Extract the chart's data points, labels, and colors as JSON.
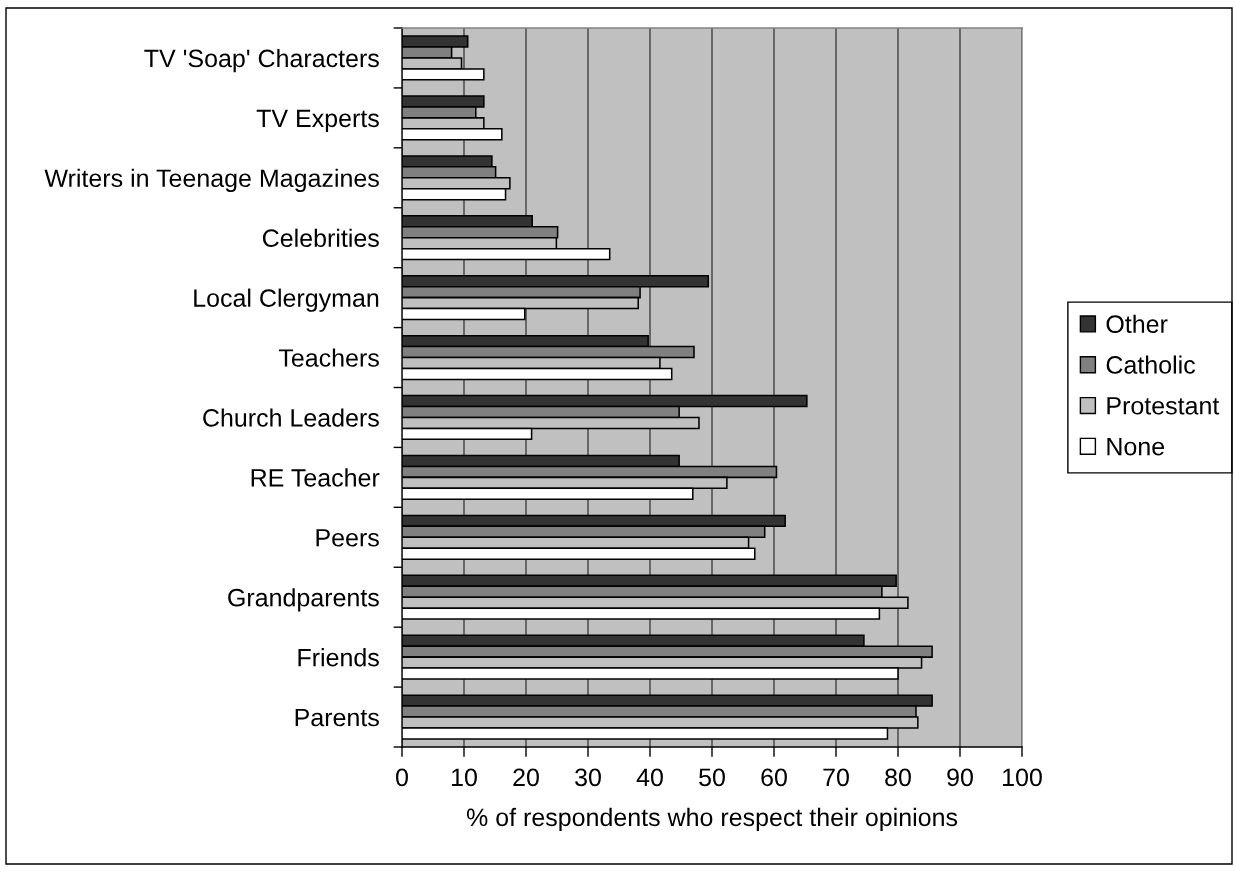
{
  "chart_data": {
    "type": "bar",
    "orientation": "horizontal",
    "categories": [
      "TV 'Soap' Characters",
      "TV Experts",
      "Writers in Teenage Magazines",
      "Celebrities",
      "Local Clergyman",
      "Teachers",
      "Church Leaders",
      "RE Teacher",
      "Peers",
      "Grandparents",
      "Friends",
      "Parents"
    ],
    "series": [
      {
        "name": "Other",
        "color": "#333333",
        "values": [
          10.6,
          13.2,
          14.5,
          21.0,
          49.4,
          39.7,
          65.3,
          44.7,
          61.8,
          79.7,
          74.5,
          85.5
        ]
      },
      {
        "name": "Catholic",
        "color": "#808080",
        "values": [
          8.0,
          11.9,
          15.1,
          25.1,
          38.4,
          47.1,
          44.7,
          60.4,
          58.5,
          77.4,
          85.5,
          82.9
        ]
      },
      {
        "name": "Protestant",
        "color": "#c0c0c0",
        "values": [
          9.6,
          13.2,
          17.4,
          24.9,
          38.1,
          41.6,
          47.9,
          52.4,
          55.9,
          81.6,
          83.8,
          83.2
        ]
      },
      {
        "name": "None",
        "color": "#ffffff",
        "values": [
          13.2,
          16.1,
          16.7,
          33.5,
          19.8,
          43.5,
          20.9,
          46.9,
          56.9,
          77.0,
          80.0,
          78.3
        ]
      }
    ],
    "xlabel": "% of respondents who respect their opinions",
    "xlim": [
      0,
      100
    ],
    "xticks": [
      0,
      10,
      20,
      30,
      40,
      50,
      60,
      70,
      80,
      90,
      100
    ],
    "grid": "x",
    "legend": "right"
  }
}
